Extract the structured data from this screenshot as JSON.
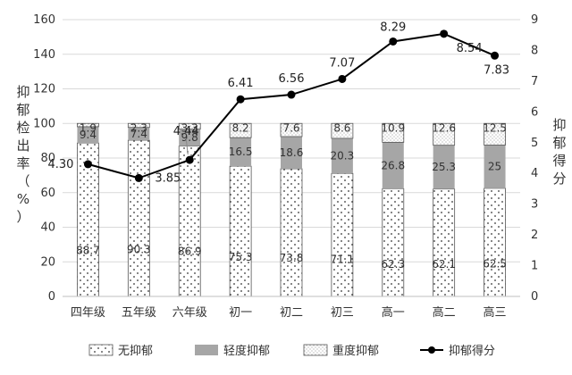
{
  "chart_data": {
    "type": "bar",
    "stacked": true,
    "categories": [
      "四年级",
      "五年级",
      "六年级",
      "初一",
      "初二",
      "初三",
      "高一",
      "高二",
      "高三"
    ],
    "ylabel": "抑郁检出率（%）",
    "y2label": "抑郁得分",
    "ylim": [
      0,
      160
    ],
    "y2lim": [
      0,
      9
    ],
    "yticks": [
      "0",
      "20",
      "40",
      "60",
      "80",
      "100",
      "120",
      "140",
      "160"
    ],
    "y2ticks": [
      "0",
      "1",
      "2",
      "3",
      "4",
      "5",
      "6",
      "7",
      "8",
      "9"
    ],
    "grid": true,
    "legend_position": "bottom",
    "series": [
      {
        "name": "无抑郁",
        "values": [
          88.7,
          90.3,
          86.9,
          75.3,
          73.8,
          71.1,
          62.3,
          62.1,
          62.5
        ],
        "labels": [
          "88.7",
          "90.3",
          "86.9",
          "75.3",
          "73.8",
          "71.1",
          "62.3",
          "62.1",
          "62.5"
        ],
        "pattern": "dots",
        "color": "#ffffff"
      },
      {
        "name": "轻度抑郁",
        "values": [
          9.4,
          7.4,
          9.8,
          16.5,
          18.6,
          20.3,
          26.8,
          25.3,
          25.0
        ],
        "labels": [
          "9.4",
          "7.4",
          "9.8",
          "16.5",
          "18.6",
          "20.3",
          "26.8",
          "25.3",
          "25"
        ],
        "pattern": "solid",
        "color": "#a6a6a6"
      },
      {
        "name": "重度抑郁",
        "values": [
          1.9,
          2.3,
          3.3,
          8.2,
          7.6,
          8.6,
          10.9,
          12.6,
          12.5
        ],
        "labels": [
          "1.9",
          "2.3",
          "3.3",
          "8.2",
          "7.6",
          "8.6",
          "10.9",
          "12.6",
          "12.5"
        ],
        "pattern": "fine-dots",
        "color": "#ffffff"
      }
    ],
    "line": {
      "name": "抑郁得分",
      "axis": "right",
      "values": [
        4.3,
        3.85,
        4.44,
        6.41,
        6.56,
        7.07,
        8.29,
        8.54,
        7.83
      ],
      "labels": [
        "4.30",
        "3.85",
        "4.44",
        "6.41",
        "6.56",
        "7.07",
        "8.29",
        "8.54",
        "7.83"
      ],
      "color": "#000000"
    }
  }
}
